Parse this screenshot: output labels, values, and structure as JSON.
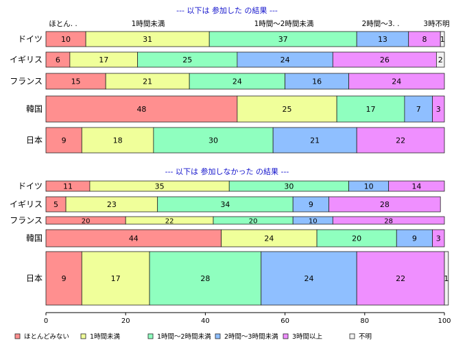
{
  "chart_data": {
    "type": "bar",
    "orientation": "horizontal",
    "stacked": true,
    "xlim": [
      0,
      100
    ],
    "x_ticks": [
      0,
      20,
      40,
      60,
      80,
      100
    ],
    "series": [
      {
        "name": "ほとんどみない",
        "color": "#ff8f8f"
      },
      {
        "name": "1時間未満",
        "color": "#f0ff9a"
      },
      {
        "name": "1時間〜2時間未満",
        "color": "#8fffbf"
      },
      {
        "name": "2時間〜3時間未満",
        "color": "#8fbfff"
      },
      {
        "name": "3時間以上",
        "color": "#ef8fff"
      },
      {
        "name": "不明",
        "color": "#f2f2f2"
      }
    ],
    "panels": [
      {
        "title": "---  以下は  参加した  の結果  ---",
        "column_headers": [
          "ほとん. .",
          "1時間未満",
          "1時間〜2時間未満",
          "2時間〜3. .",
          "3時. .",
          "不明"
        ],
        "rows": [
          {
            "label": "ドイツ",
            "values": [
              10,
              31,
              37,
              13,
              8,
              1
            ]
          },
          {
            "label": "イギリス",
            "values": [
              6,
              17,
              25,
              24,
              26,
              2
            ]
          },
          {
            "label": "フランス",
            "values": [
              15,
              21,
              24,
              16,
              24,
              0
            ]
          },
          {
            "label": "韓国",
            "values": [
              48,
              25,
              17,
              7,
              3,
              0
            ]
          },
          {
            "label": "日本",
            "values": [
              9,
              18,
              30,
              21,
              22,
              0
            ]
          }
        ]
      },
      {
        "title": "---  以下は  参加しなかった  の結果  ---",
        "rows": [
          {
            "label": "ドイツ",
            "values": [
              11,
              35,
              30,
              10,
              14,
              0
            ]
          },
          {
            "label": "イギリス",
            "values": [
              5,
              23,
              34,
              9,
              28,
              0
            ]
          },
          {
            "label": "フランス",
            "values": [
              20,
              22,
              20,
              10,
              28,
              0
            ]
          },
          {
            "label": "韓国",
            "values": [
              44,
              24,
              20,
              9,
              3,
              0
            ]
          },
          {
            "label": "日本",
            "values": [
              9,
              17,
              28,
              24,
              22,
              1
            ]
          }
        ]
      }
    ]
  }
}
